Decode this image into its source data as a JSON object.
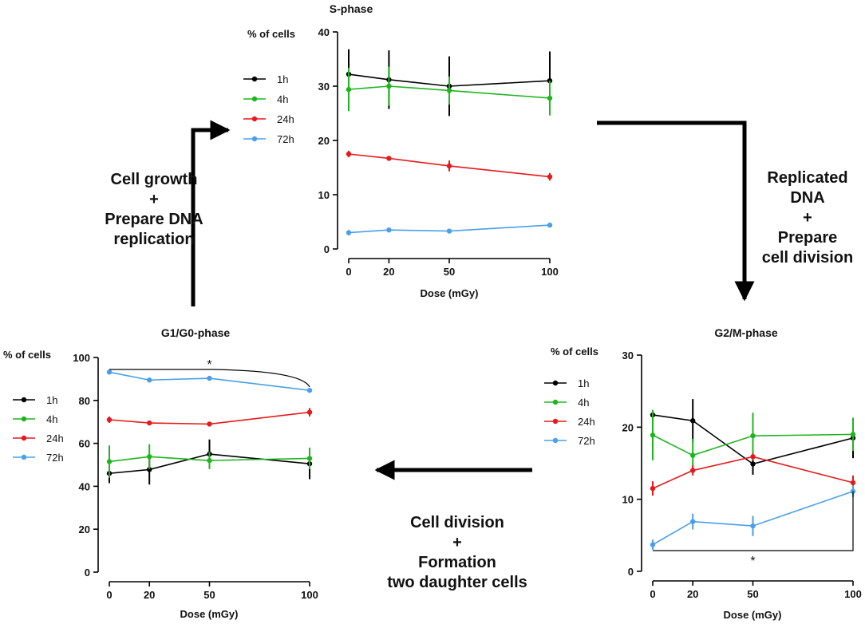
{
  "colors": {
    "1h": "#000000",
    "4h": "#1fb51f",
    "24h": "#e41a1c",
    "72h": "#4a9fe8",
    "axis": "#000000",
    "arrow": "#000000"
  },
  "flow": {
    "g1_to_s": [
      "Cell growth",
      "+",
      "Prepare DNA",
      "replication"
    ],
    "s_to_g2": [
      "Replicated",
      "DNA",
      "+",
      "Prepare",
      "cell division"
    ],
    "g2_to_g1": [
      "Cell division",
      "+",
      "Formation",
      "two daughter cells"
    ]
  },
  "chart_data": [
    {
      "type": "line",
      "id": "s",
      "title": "S-phase",
      "xlabel": "Dose (mGy)",
      "ylabel": "% of cells",
      "x": [
        0,
        20,
        50,
        100
      ],
      "xticks": [
        0,
        20,
        50,
        100
      ],
      "ylim": [
        0,
        40
      ],
      "yticks": [
        0,
        10,
        20,
        30,
        40
      ],
      "legend": "top-left",
      "series": [
        {
          "name": "1h",
          "color": "#000000",
          "values": [
            32.2,
            31.2,
            30.0,
            31.0
          ],
          "errors": [
            4.6,
            5.4,
            5.5,
            5.4
          ]
        },
        {
          "name": "4h",
          "color": "#1fb51f",
          "values": [
            29.4,
            30.0,
            29.2,
            27.8
          ],
          "errors": [
            4.0,
            3.6,
            2.6,
            3.2
          ]
        },
        {
          "name": "24h",
          "color": "#e41a1c",
          "values": [
            17.5,
            16.7,
            15.3,
            13.3
          ],
          "errors": [
            0.6,
            0.3,
            1.0,
            0.7
          ]
        },
        {
          "name": "72h",
          "color": "#4a9fe8",
          "values": [
            3.0,
            3.5,
            3.3,
            4.4
          ],
          "errors": [
            0.5,
            0.3,
            0.3,
            0.4
          ]
        }
      ],
      "annotations": []
    },
    {
      "type": "line",
      "id": "g1",
      "title": "G1/G0-phase",
      "xlabel": "Dose (mGy)",
      "ylabel": "% of cells",
      "x": [
        0,
        20,
        50,
        100
      ],
      "xticks": [
        0,
        20,
        50,
        100
      ],
      "ylim": [
        0,
        100
      ],
      "yticks": [
        0,
        20,
        40,
        60,
        80,
        100
      ],
      "legend": "left",
      "series": [
        {
          "name": "1h",
          "color": "#000000",
          "values": [
            46.0,
            47.8,
            55.0,
            50.5
          ],
          "errors": [
            4.5,
            7.0,
            6.8,
            7.2
          ]
        },
        {
          "name": "4h",
          "color": "#1fb51f",
          "values": [
            51.5,
            53.8,
            52.0,
            53.0
          ],
          "errors": [
            7.5,
            5.8,
            4.0,
            5.0
          ]
        },
        {
          "name": "24h",
          "color": "#e41a1c",
          "values": [
            71.0,
            69.5,
            69.0,
            74.5
          ],
          "errors": [
            1.5,
            0.8,
            1.0,
            2.0
          ]
        },
        {
          "name": "72h",
          "color": "#4a9fe8",
          "values": [
            93.2,
            89.5,
            90.3,
            84.7
          ],
          "errors": [
            0.8,
            0.6,
            0.6,
            0.6
          ]
        }
      ],
      "annotations": [
        {
          "text": "*",
          "from": 0,
          "to": 100,
          "kind": "curved-bracket-top"
        }
      ]
    },
    {
      "type": "line",
      "id": "g2",
      "title": "G2/M-phase",
      "xlabel": "Dose (mGy)",
      "ylabel": "% of cells",
      "x": [
        0,
        20,
        50,
        100
      ],
      "xticks": [
        0,
        20,
        50,
        100
      ],
      "ylim": [
        0,
        30
      ],
      "yticks": [
        0,
        10,
        20,
        30
      ],
      "legend": "top-left",
      "series": [
        {
          "name": "1h",
          "color": "#000000",
          "values": [
            21.7,
            20.9,
            14.9,
            18.5
          ],
          "errors": [
            0.6,
            3.0,
            1.5,
            2.8
          ]
        },
        {
          "name": "4h",
          "color": "#1fb51f",
          "values": [
            18.9,
            16.1,
            18.8,
            19.0
          ],
          "errors": [
            3.5,
            2.3,
            3.2,
            2.3
          ]
        },
        {
          "name": "24h",
          "color": "#e41a1c",
          "values": [
            11.5,
            14.0,
            15.9,
            12.3
          ],
          "errors": [
            1.0,
            0.7,
            0.5,
            1.0
          ]
        },
        {
          "name": "72h",
          "color": "#4a9fe8",
          "values": [
            3.7,
            6.9,
            6.3,
            11.1
          ],
          "errors": [
            0.7,
            1.1,
            1.4,
            0.8
          ]
        }
      ],
      "annotations": [
        {
          "text": "*",
          "from": 0,
          "to": 100,
          "kind": "bracket-bottom"
        }
      ]
    }
  ]
}
